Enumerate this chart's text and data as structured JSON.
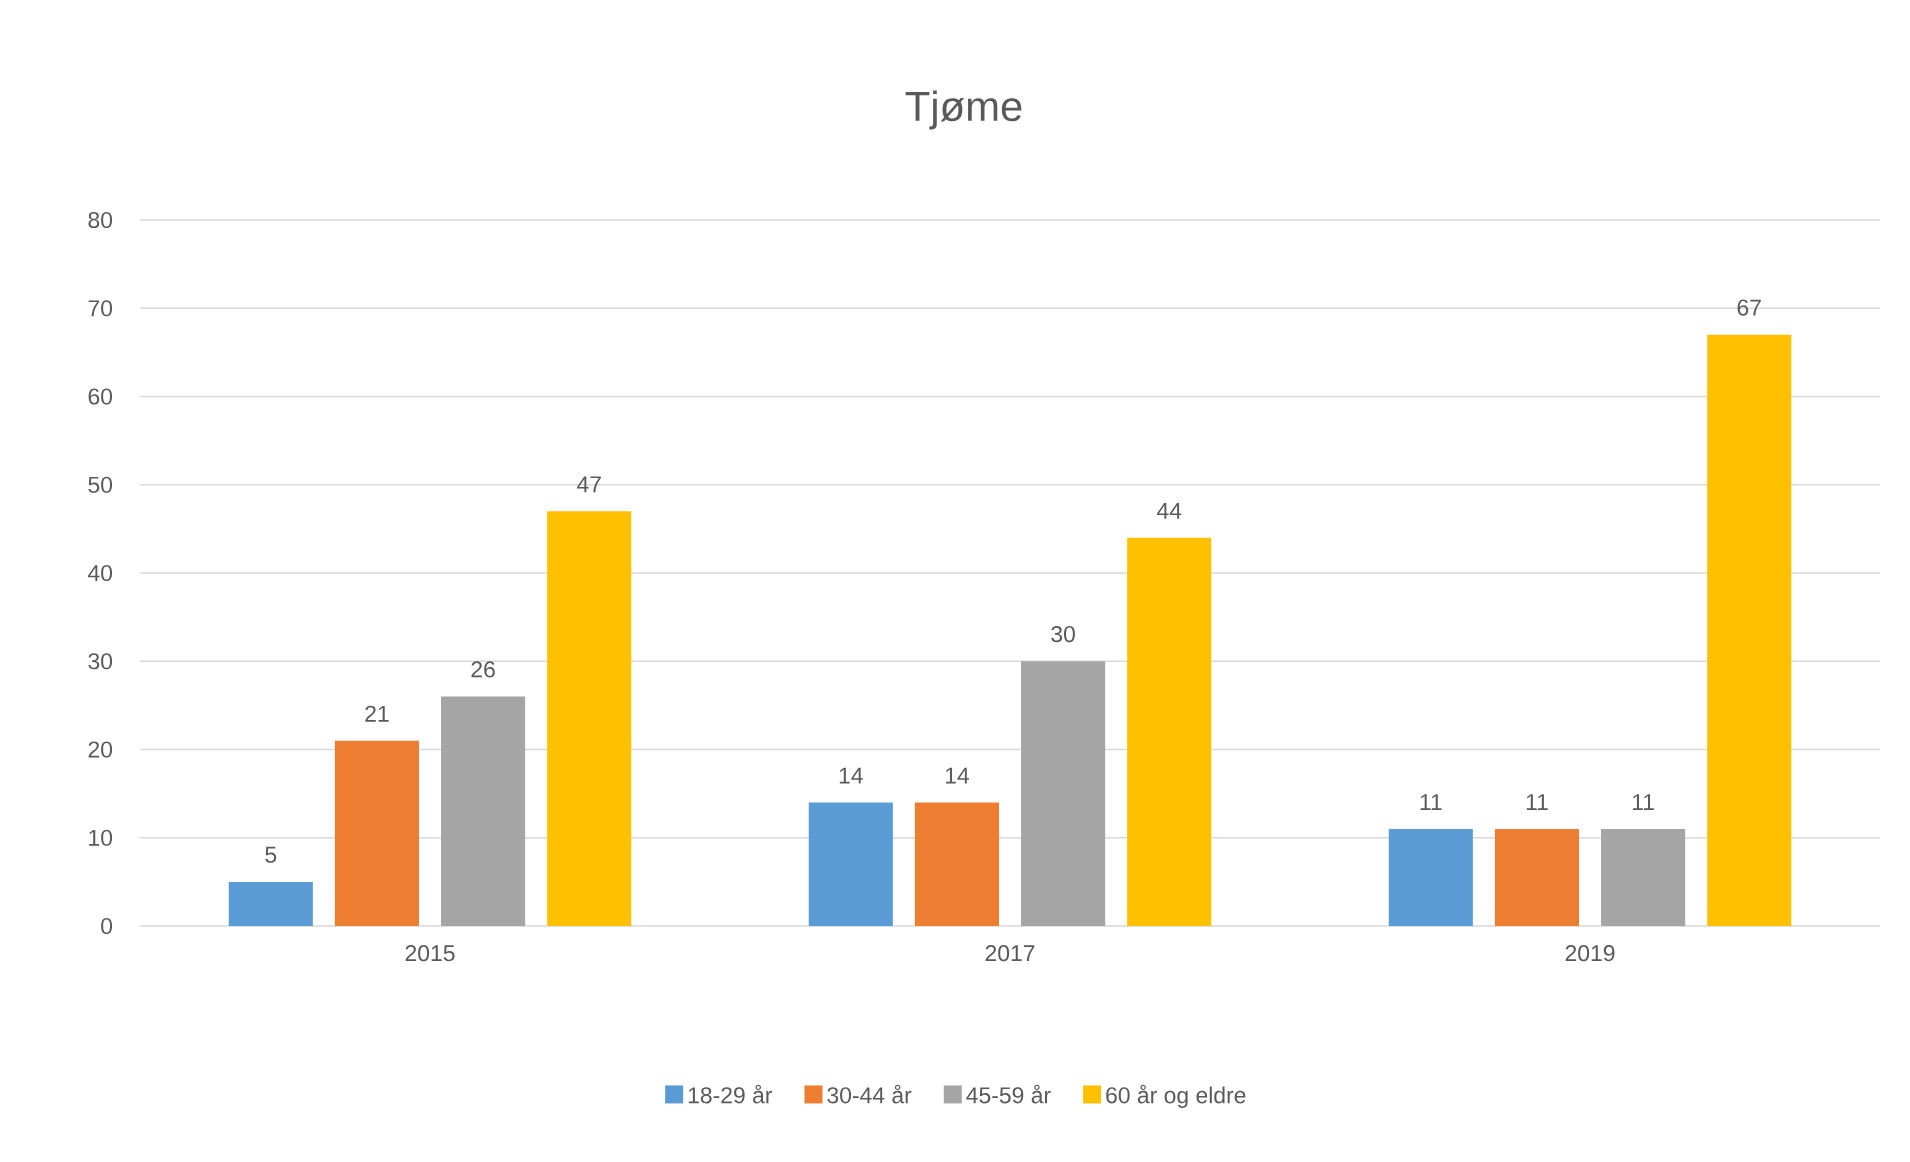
{
  "chart_data": {
    "type": "bar",
    "title": "Tjøme",
    "categories": [
      "2015",
      "2017",
      "2019"
    ],
    "series": [
      {
        "name": "18-29 år",
        "color": "#5b9bd5",
        "values": [
          5,
          14,
          11
        ]
      },
      {
        "name": "30-44 år",
        "color": "#ed7d31",
        "values": [
          21,
          14,
          11
        ]
      },
      {
        "name": "45-59 år",
        "color": "#a5a5a5",
        "values": [
          26,
          30,
          11
        ]
      },
      {
        "name": "60 år og eldre",
        "color": "#ffc000",
        "values": [
          47,
          44,
          67
        ]
      }
    ],
    "ylim": [
      0,
      80
    ],
    "yticks": [
      0,
      10,
      20,
      30,
      40,
      50,
      60,
      70,
      80
    ],
    "grid": "y",
    "legend": "bottom",
    "data_labels": true
  }
}
